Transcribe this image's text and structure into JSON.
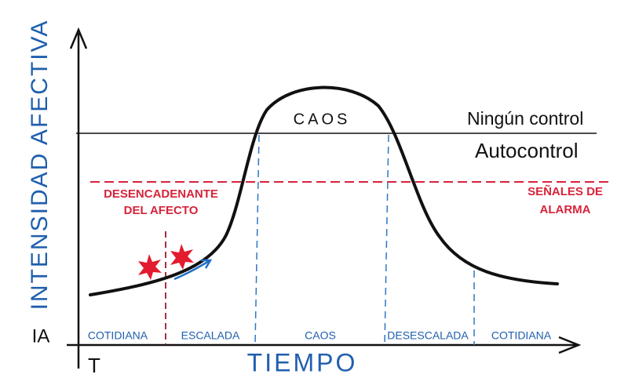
{
  "axes": {
    "y_label": "INTENSIDAD AFECTIVA",
    "y_abbrev": "IA",
    "x_label": "TIEMPO",
    "x_abbrev": "T"
  },
  "peak_label": "CAOS",
  "levels": {
    "above": "Ningún control",
    "below": "Autocontrol"
  },
  "trigger": {
    "lines": [
      "DESENCADENANTE",
      "DEL AFECTO"
    ]
  },
  "alarm": {
    "lines": [
      "SEÑALES DE",
      "ALARMA"
    ]
  },
  "phases": [
    "COTIDIANA",
    "ESCALADA",
    "CAOS",
    "DESESCALADA",
    "COTIDIANA"
  ]
}
